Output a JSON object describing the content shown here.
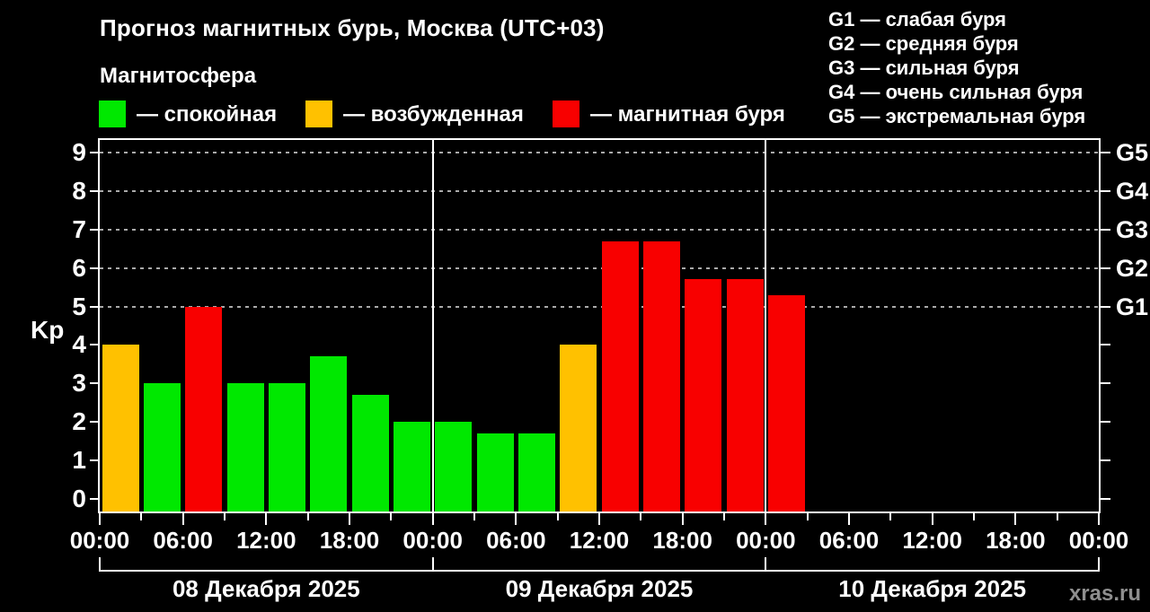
{
  "header": {
    "title": "Прогноз магнитных бурь, Москва (UTC+03)",
    "subtitle": "Магнитосфера",
    "legend": [
      {
        "state": "quiet",
        "label": "— спокойная"
      },
      {
        "state": "excited",
        "label": "— возбужденная"
      },
      {
        "state": "storm",
        "label": "— магнитная буря"
      }
    ],
    "g_legend": [
      "G1 — слабая буря",
      "G2 — средняя буря",
      "G3 — сильная буря",
      "G4 — очень сильная буря",
      "G5 — экстремальная буря"
    ]
  },
  "chart_data": {
    "type": "bar",
    "title": "Прогноз магнитных бурь, Москва (UTC+03)",
    "ylabel": "Kp",
    "ylim": [
      -0.32,
      9.32
    ],
    "y_ticks": [
      0,
      1,
      2,
      3,
      4,
      5,
      6,
      7,
      8,
      9
    ],
    "grid_levels_kp": [
      5,
      6,
      7,
      8,
      9
    ],
    "right_axis": [
      {
        "kp": 5,
        "label": "G1"
      },
      {
        "kp": 6,
        "label": "G2"
      },
      {
        "kp": 7,
        "label": "G3"
      },
      {
        "kp": 8,
        "label": "G4"
      },
      {
        "kp": 9,
        "label": "G5"
      }
    ],
    "x_span_hours": 72,
    "x_tick_step_hours": 3,
    "x_label_step_hours": 6,
    "x_labels": [
      "00:00",
      "06:00",
      "12:00",
      "18:00",
      "00:00",
      "06:00",
      "12:00",
      "18:00",
      "00:00",
      "06:00",
      "12:00",
      "18:00",
      "00:00"
    ],
    "day_separator_hours": [
      24,
      48
    ],
    "days": [
      {
        "label": "08 Декабря 2025",
        "start_hour": 0
      },
      {
        "label": "09 Декабря 2025",
        "start_hour": 24
      },
      {
        "label": "10 Декабря 2025",
        "start_hour": 48
      }
    ],
    "colors": {
      "quiet": "#00e800",
      "excited": "#ffc100",
      "storm": "#f80000"
    },
    "bars": [
      {
        "start_hour": 0,
        "kp": 4,
        "state": "excited"
      },
      {
        "start_hour": 3,
        "kp": 3,
        "state": "quiet"
      },
      {
        "start_hour": 6,
        "kp": 5,
        "state": "storm"
      },
      {
        "start_hour": 9,
        "kp": 3,
        "state": "quiet"
      },
      {
        "start_hour": 12,
        "kp": 3,
        "state": "quiet"
      },
      {
        "start_hour": 15,
        "kp": 3.7,
        "state": "quiet"
      },
      {
        "start_hour": 18,
        "kp": 2.7,
        "state": "quiet"
      },
      {
        "start_hour": 21,
        "kp": 2,
        "state": "quiet"
      },
      {
        "start_hour": 24,
        "kp": 2,
        "state": "quiet"
      },
      {
        "start_hour": 27,
        "kp": 1.7,
        "state": "quiet"
      },
      {
        "start_hour": 30,
        "kp": 1.7,
        "state": "quiet"
      },
      {
        "start_hour": 33,
        "kp": 4,
        "state": "excited"
      },
      {
        "start_hour": 36,
        "kp": 6.7,
        "state": "storm"
      },
      {
        "start_hour": 39,
        "kp": 6.7,
        "state": "storm"
      },
      {
        "start_hour": 42,
        "kp": 5.7,
        "state": "storm"
      },
      {
        "start_hour": 45,
        "kp": 5.7,
        "state": "storm"
      },
      {
        "start_hour": 48,
        "kp": 5.3,
        "state": "storm"
      }
    ]
  },
  "footer": {
    "watermark": "xras.ru"
  }
}
